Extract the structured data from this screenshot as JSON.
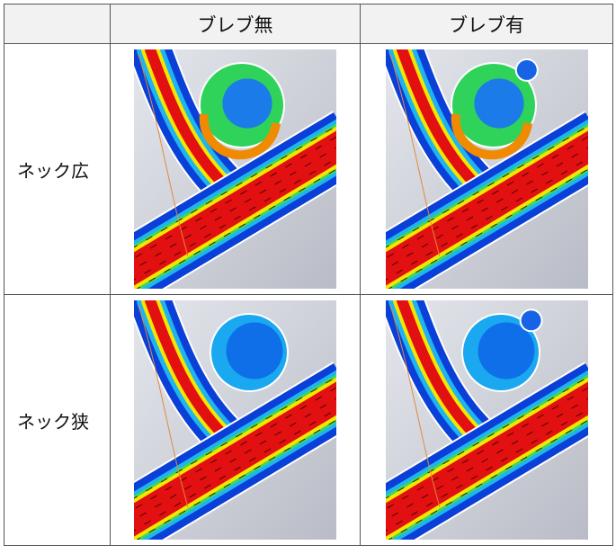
{
  "table": {
    "columns": [
      "ブレブ無",
      "ブレブ有"
    ],
    "rows": [
      "ネック広",
      "ネック狭"
    ]
  }
}
